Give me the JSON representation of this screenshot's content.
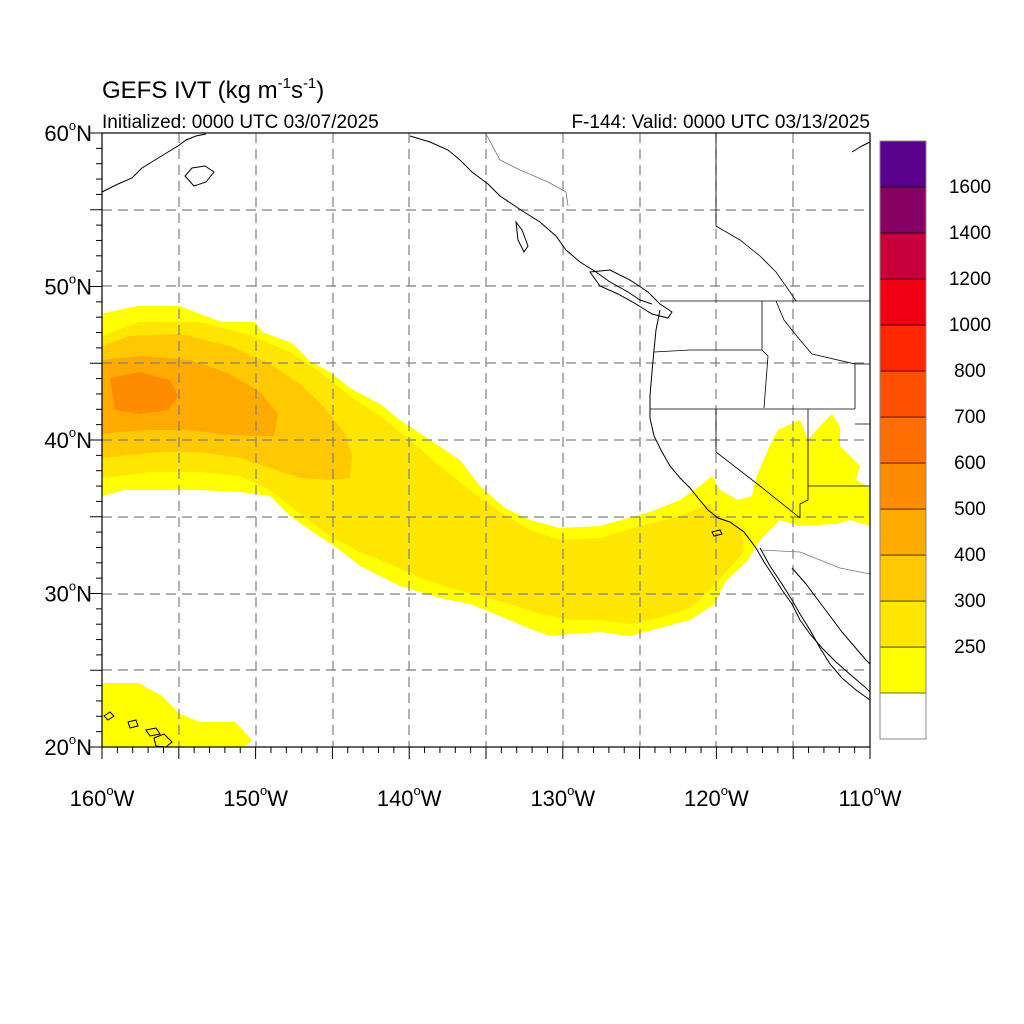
{
  "title": {
    "main": "GEFS IVT (kg m",
    "sup1": "-1",
    "mid": "s",
    "sup2": "-1",
    "close": ")"
  },
  "subtitle_left": "Initialized: 0000 UTC 03/07/2025",
  "subtitle_right": "F-144: Valid: 0000 UTC 03/13/2025",
  "lat_ticks": [
    {
      "value": 60,
      "label": "60",
      "suffix": "N"
    },
    {
      "value": 50,
      "label": "50",
      "suffix": "N"
    },
    {
      "value": 40,
      "label": "40",
      "suffix": "N"
    },
    {
      "value": 30,
      "label": "30",
      "suffix": "N"
    },
    {
      "value": 20,
      "label": "20",
      "suffix": "N"
    }
  ],
  "lon_ticks": [
    {
      "value": -160,
      "label": "160",
      "suffix": "W"
    },
    {
      "value": -150,
      "label": "150",
      "suffix": "W"
    },
    {
      "value": -140,
      "label": "140",
      "suffix": "W"
    },
    {
      "value": -130,
      "label": "130",
      "suffix": "W"
    },
    {
      "value": -120,
      "label": "120",
      "suffix": "W"
    },
    {
      "value": -110,
      "label": "110",
      "suffix": "W"
    }
  ],
  "degree_symbol": "o",
  "colorbar": {
    "bins": [
      {
        "color": "#ffffff"
      },
      {
        "color": "#ffff00",
        "label": "250"
      },
      {
        "color": "#ffe600",
        "label": "300"
      },
      {
        "color": "#ffc800",
        "label": "400"
      },
      {
        "color": "#ffaa00",
        "label": "500"
      },
      {
        "color": "#ff8c00",
        "label": "600"
      },
      {
        "color": "#ff6e00",
        "label": "700"
      },
      {
        "color": "#ff5000",
        "label": "800"
      },
      {
        "color": "#ff2800",
        "label": "1000"
      },
      {
        "color": "#f00014",
        "label": "1200"
      },
      {
        "color": "#c8003c",
        "label": "1400"
      },
      {
        "color": "#870064",
        "label": "1600"
      },
      {
        "color": "#5a008c"
      }
    ]
  },
  "map_extent": {
    "lon": [
      -160,
      -110
    ],
    "lat": [
      20,
      60
    ]
  }
}
